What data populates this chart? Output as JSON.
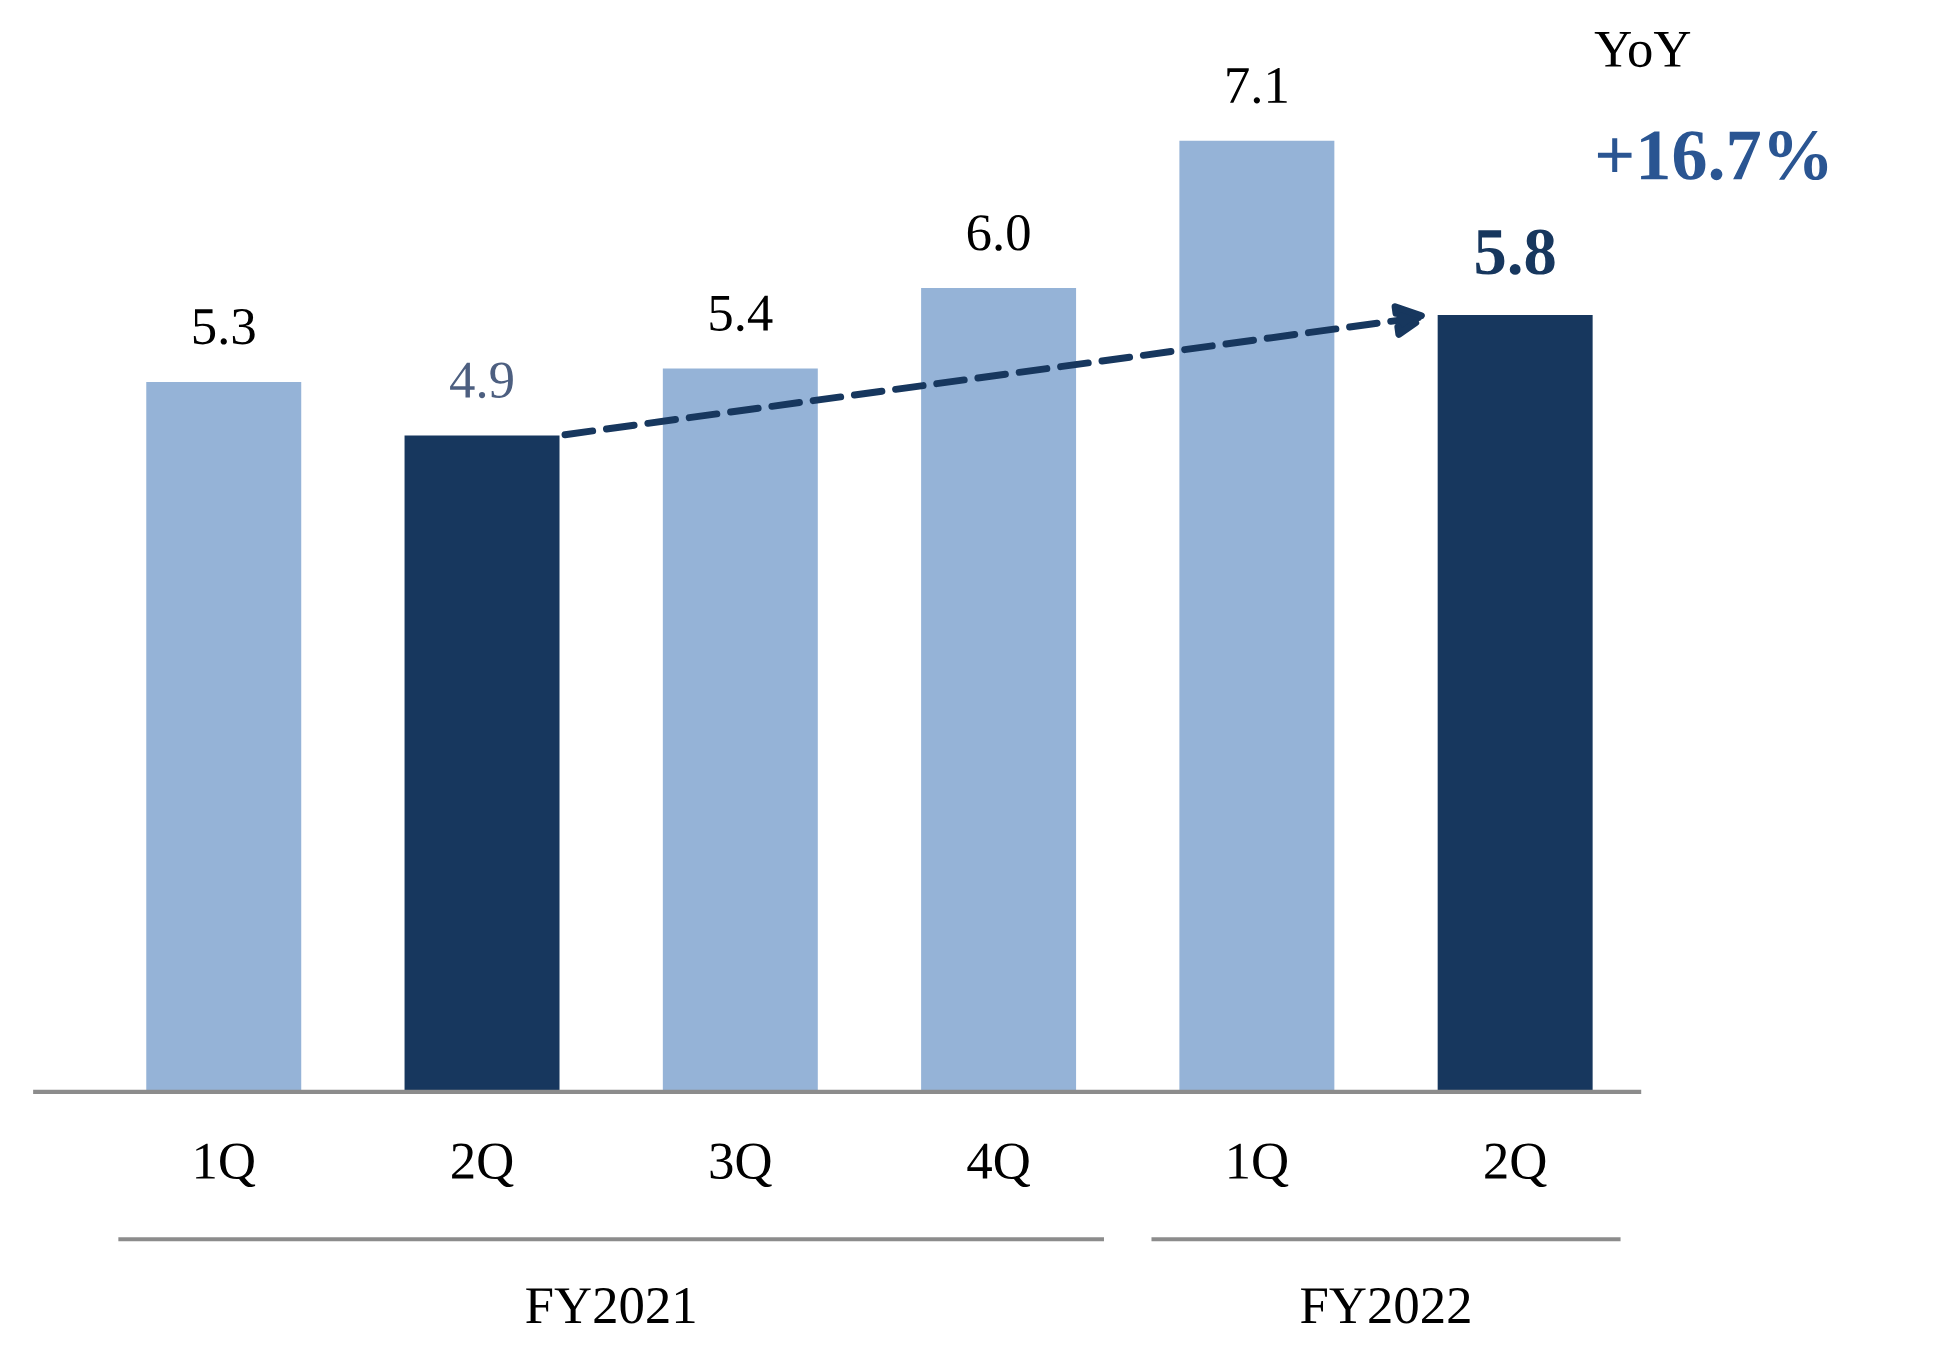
{
  "chart_data": {
    "type": "bar",
    "categories": [
      "1Q",
      "2Q",
      "3Q",
      "4Q",
      "1Q",
      "2Q"
    ],
    "values": [
      5.3,
      4.9,
      5.4,
      6.0,
      7.1,
      5.8
    ],
    "colors": [
      "#95b3d7",
      "#17375e",
      "#95b3d7",
      "#95b3d7",
      "#95b3d7",
      "#17375e"
    ],
    "value_labels": [
      "5.3",
      "4.9",
      "5.4",
      "6.0",
      "7.1",
      "5.8"
    ],
    "grid": false,
    "annotations": [
      "FY2021",
      "FY2022",
      "YoY",
      "+16.7%"
    ]
  }
}
